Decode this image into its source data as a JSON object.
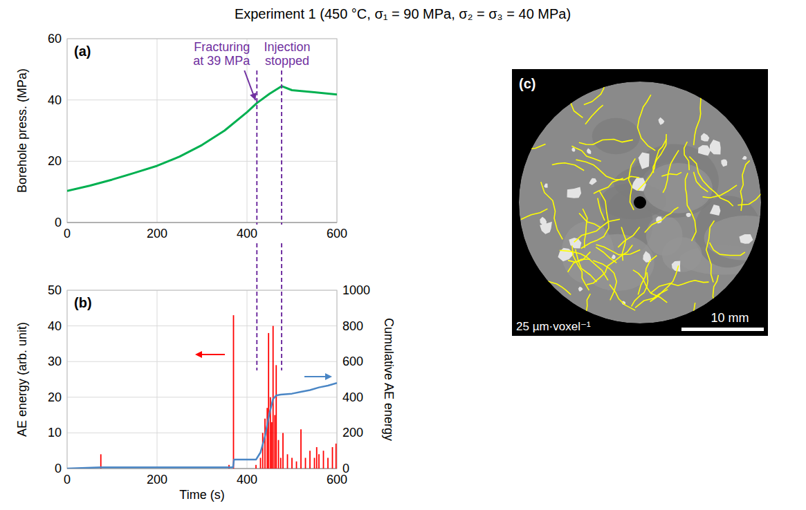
{
  "title": "Experiment 1 (450 °C, σ₁ = 90 MPa, σ₂ = σ₃ = 40 MPa)",
  "chart_data": [
    {
      "type": "line",
      "label": "(a)",
      "ylabel": "Borehole press. (MPa)",
      "xlim": [
        0,
        600
      ],
      "xticks": [
        0,
        200,
        400,
        600
      ],
      "ylim": [
        0,
        60
      ],
      "yticks": [
        0,
        20,
        40,
        60
      ],
      "grid": true,
      "x": [
        0,
        50,
        100,
        150,
        200,
        250,
        300,
        350,
        400,
        422,
        450,
        477,
        500,
        550,
        600
      ],
      "series": [
        {
          "color": "#00b050",
          "values": [
            10.3,
            12,
            14,
            16.2,
            18.5,
            21.5,
            25.3,
            30,
            36,
            39,
            42,
            44.5,
            43.2,
            42.5,
            41.8
          ]
        }
      ],
      "annotations": [
        {
          "text": "Fracturing at 39 MPa",
          "x": 422
        },
        {
          "text": "Injection stopped",
          "x": 477
        }
      ]
    },
    {
      "type": "bar",
      "label": "(b)",
      "xlabel": "Time (s)",
      "ylabel": "AE energy (arb. unit)",
      "y2label": "Cumulative AE energy",
      "xlim": [
        0,
        600
      ],
      "xticks": [
        0,
        200,
        400,
        600
      ],
      "ylim": [
        0,
        50
      ],
      "yticks": [
        0,
        10,
        20,
        30,
        40,
        50
      ],
      "y2lim": [
        0,
        1000
      ],
      "y2ticks": [
        0,
        200,
        400,
        600,
        800,
        1000
      ],
      "grid": true,
      "series": [
        {
          "type": "bar",
          "color": "#ff0000",
          "x": [
            75,
            360,
            370,
            420,
            430,
            435,
            440,
            445,
            448,
            452,
            455,
            458,
            462,
            465,
            470,
            475,
            480,
            490,
            500,
            510,
            520,
            530,
            540,
            550,
            555,
            560,
            570,
            580,
            590,
            598
          ],
          "values": [
            4,
            1,
            43,
            1,
            3,
            10,
            14,
            17,
            38,
            20,
            13,
            40,
            15,
            29,
            8,
            3,
            10,
            4,
            3,
            2,
            11,
            3,
            5,
            3,
            6,
            4,
            5,
            3,
            6,
            7
          ]
        },
        {
          "type": "line",
          "axis": "y2",
          "color": "#4a86c5",
          "x": [
            0,
            75,
            369,
            371,
            420,
            430,
            440,
            450,
            458,
            465,
            475,
            500,
            520,
            540,
            560,
            580,
            600
          ],
          "values": [
            0,
            7,
            7,
            50,
            50,
            90,
            180,
            310,
            390,
            410,
            415,
            420,
            430,
            440,
            455,
            465,
            480
          ]
        }
      ]
    }
  ],
  "image_panel": {
    "label": "(c)",
    "resolution": "25 µm·voxel⁻¹",
    "scale_bar": "10 mm"
  }
}
